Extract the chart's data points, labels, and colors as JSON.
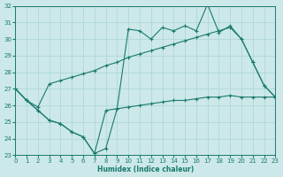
{
  "xlabel": "Humidex (Indice chaleur)",
  "bg_color": "#cce8e8",
  "grid_color": "#aad4d4",
  "line_color": "#1a7a6e",
  "xlim": [
    0,
    23
  ],
  "ylim": [
    23,
    32
  ],
  "xticks": [
    0,
    1,
    2,
    3,
    4,
    5,
    6,
    7,
    8,
    9,
    10,
    11,
    12,
    13,
    14,
    15,
    16,
    17,
    18,
    19,
    20,
    21,
    22,
    23
  ],
  "yticks": [
    23,
    24,
    25,
    26,
    27,
    28,
    29,
    30,
    31,
    32
  ],
  "line_jagged_x": [
    0,
    1,
    2,
    3,
    4,
    5,
    6,
    7,
    8,
    9,
    10,
    11,
    12,
    13,
    14,
    15,
    16,
    17,
    18,
    19,
    20,
    21,
    22,
    23
  ],
  "line_jagged_y": [
    27.0,
    26.3,
    25.7,
    25.1,
    24.9,
    24.4,
    24.1,
    23.1,
    23.4,
    25.8,
    30.6,
    30.5,
    30.0,
    30.7,
    30.5,
    30.8,
    30.5,
    32.1,
    30.4,
    30.8,
    30.0,
    28.6,
    27.2,
    26.5
  ],
  "line_upper_x": [
    0,
    1,
    2,
    3,
    4,
    5,
    6,
    7,
    8,
    9,
    10,
    11,
    12,
    13,
    14,
    15,
    16,
    17,
    18,
    19,
    20,
    21,
    22,
    23
  ],
  "line_upper_y": [
    27.0,
    26.3,
    25.9,
    27.3,
    27.5,
    27.7,
    27.9,
    28.1,
    28.4,
    28.6,
    28.9,
    29.1,
    29.3,
    29.5,
    29.7,
    29.9,
    30.1,
    30.3,
    30.5,
    30.7,
    30.0,
    28.6,
    27.2,
    26.5
  ],
  "line_lower_x": [
    0,
    1,
    2,
    3,
    4,
    5,
    6,
    7,
    8,
    9,
    10,
    11,
    12,
    13,
    14,
    15,
    16,
    17,
    18,
    19,
    20,
    21,
    22,
    23
  ],
  "line_lower_y": [
    27.0,
    26.3,
    25.7,
    25.1,
    24.9,
    24.4,
    24.1,
    23.1,
    25.7,
    25.8,
    25.9,
    26.0,
    26.1,
    26.2,
    26.3,
    26.3,
    26.4,
    26.5,
    26.5,
    26.6,
    26.5,
    26.5,
    26.5,
    26.5
  ]
}
